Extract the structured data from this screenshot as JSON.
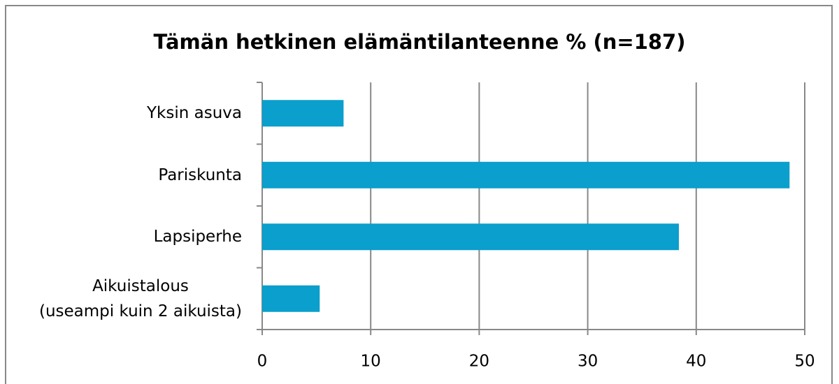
{
  "chart_data": {
    "type": "bar",
    "orientation": "horizontal",
    "title": "Tämän hetkinen elämäntilanteenne % (n=187)",
    "categories": [
      "Yksin asuva",
      "Pariskunta",
      "Lapsiperhe",
      "Aikuistalous\n(useampi kuin 2 aikuista)"
    ],
    "values": [
      7.5,
      48.6,
      38.4,
      5.3
    ],
    "color": "#0a9fcc",
    "xlim": [
      0,
      50
    ],
    "xticks": [
      0,
      10,
      20,
      30,
      40,
      50
    ],
    "grid": true
  }
}
